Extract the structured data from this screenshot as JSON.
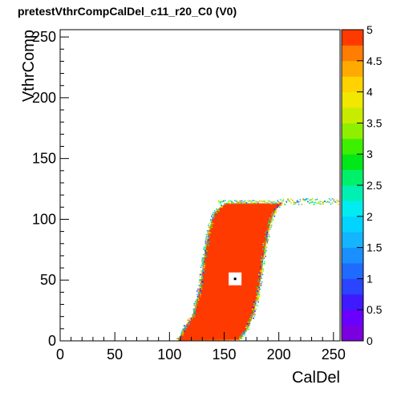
{
  "title": "pretestVthrCompCalDel_c11_r20_C0 (V0)",
  "chart_data": {
    "type": "heatmap",
    "title": "pretestVthrCompCalDel_c11_r20_C0 (V0)",
    "xlabel": "CalDel",
    "ylabel": "VthrComp",
    "xlim": [
      0,
      256
    ],
    "ylim": [
      0,
      256
    ],
    "zlim": [
      0,
      5
    ],
    "x_ticks": [
      0,
      50,
      100,
      150,
      200,
      250
    ],
    "y_ticks": [
      0,
      50,
      100,
      150,
      200,
      250
    ],
    "z_ticks": [
      "0",
      "0.5",
      "1",
      "1.5",
      "2",
      "2.5",
      "3",
      "3.5",
      "4",
      "4.5",
      "5"
    ],
    "grid": false,
    "color_scale": "rainbow",
    "fill_value": 5,
    "plateau_y": 113,
    "plateau_x_range": [
      150,
      200
    ],
    "tail_x_range": [
      200,
      256
    ],
    "tail_y": [
      112,
      117
    ],
    "lower_edge": {
      "left": [
        [
          108,
          0
        ],
        [
          113,
          10
        ],
        [
          121,
          20
        ],
        [
          126,
          35
        ],
        [
          129,
          50
        ],
        [
          132,
          70
        ],
        [
          136,
          90
        ],
        [
          141,
          105
        ],
        [
          148,
          111
        ],
        [
          153,
          113
        ]
      ],
      "right": [
        [
          163,
          0
        ],
        [
          170,
          8
        ],
        [
          176,
          20
        ],
        [
          180,
          35
        ],
        [
          183,
          50
        ],
        [
          186,
          70
        ],
        [
          190,
          90
        ],
        [
          194,
          102
        ],
        [
          198,
          109
        ],
        [
          203,
          113
        ]
      ]
    },
    "hole": {
      "x": 160,
      "y": 51,
      "value": 0
    }
  }
}
